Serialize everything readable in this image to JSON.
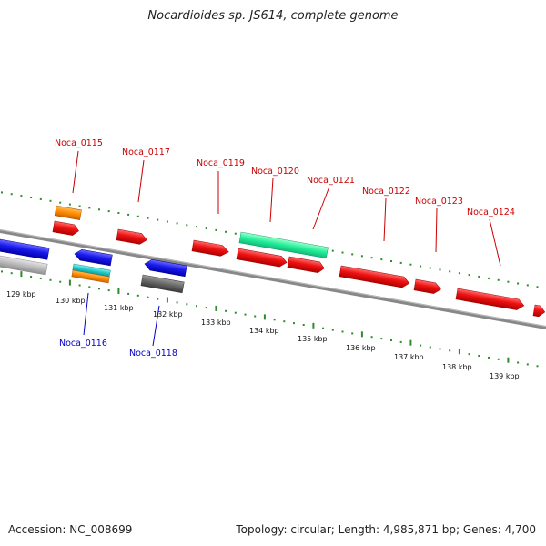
{
  "title": "Nocardioides sp. JS614, complete genome",
  "footer": {
    "accession": "Accession: NC_008699",
    "summary": "Topology: circular; Length: 4,985,871 bp; Genes: 4,700"
  },
  "colors": {
    "forward_label": "#cc0000",
    "reverse_label": "#0000cc",
    "backbone": "#888888",
    "tick": "#2e8b2e",
    "gene_red": "#ee1111",
    "gene_blue": "#1a1aee",
    "gene_orange": "#ff8c00",
    "gene_cyan": "#22cccc",
    "gene_green": "#22ee99",
    "gene_gray": "#bbbbbb",
    "gene_darkgray": "#666666"
  },
  "scale_labels": [
    "129 kbp",
    "130 kbp",
    "131 kbp",
    "132 kbp",
    "133 kbp",
    "134 kbp",
    "135 kbp",
    "136 kbp",
    "137 kbp",
    "138 kbp",
    "139 kbp"
  ],
  "forward_gene_labels": [
    "Noca_0115",
    "Noca_0117",
    "Noca_0119",
    "Noca_0120",
    "Noca_0121",
    "Noca_0122",
    "Noca_0123",
    "Noca_0124"
  ],
  "reverse_gene_labels": [
    "Noca_0116",
    "Noca_0118"
  ]
}
